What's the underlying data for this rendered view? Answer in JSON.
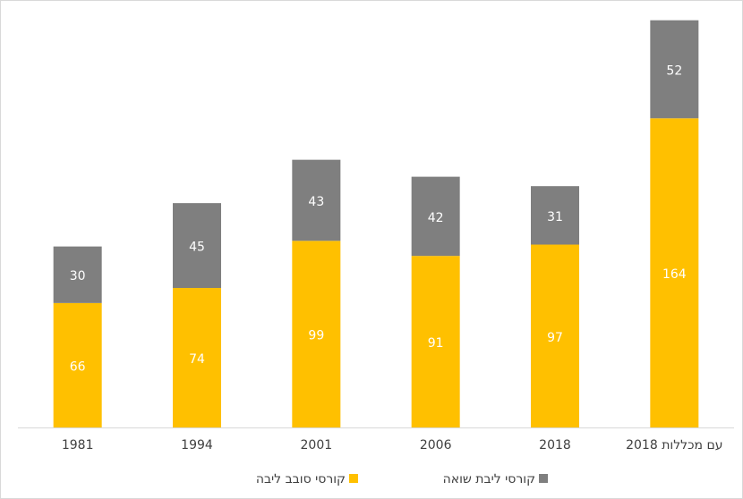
{
  "chart_data": {
    "type": "stacked_bar",
    "categories": [
      "1981",
      "1994",
      "2001",
      "2006",
      "2018",
      "2018 עם מכללות"
    ],
    "series": [
      {
        "name": "קורסי סובב ליבה",
        "color": "#ffc000",
        "values": [
          66,
          74,
          99,
          91,
          97,
          164
        ]
      },
      {
        "name": "קורסי ליבת שואה",
        "color": "#7f7f7f",
        "values": [
          30,
          45,
          43,
          42,
          31,
          52
        ]
      }
    ],
    "ylim": [
      0,
      222
    ],
    "grid": false,
    "legend": "bottom"
  }
}
